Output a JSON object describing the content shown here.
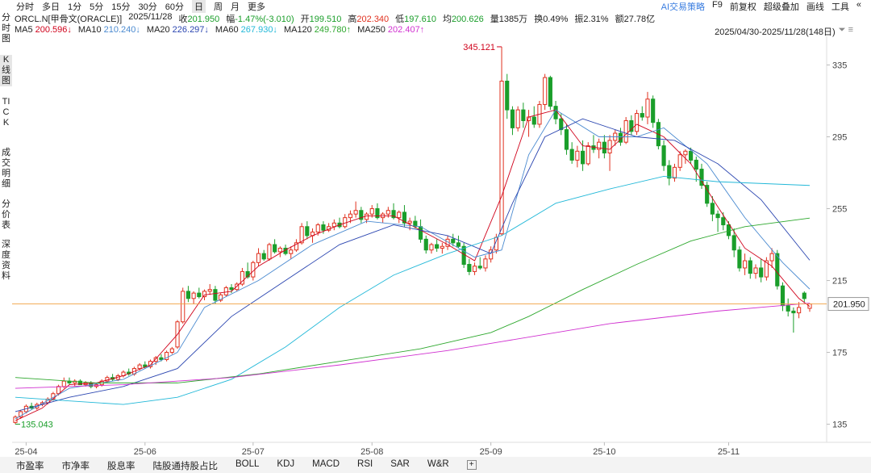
{
  "toolbar": {
    "periods": [
      "分时",
      "多日",
      "1分",
      "5分",
      "15分",
      "30分",
      "60分",
      "日",
      "周",
      "月",
      "更多"
    ],
    "selected": "日",
    "tools": [
      "AI交易策略",
      "F9",
      "前复权",
      "超级叠加",
      "画线",
      "工具"
    ]
  },
  "quote": [
    {
      "label": "ORCL.N[甲骨文(ORACLE)]",
      "color": "#222"
    },
    {
      "label": "2025/11/28",
      "color": "#222"
    },
    {
      "label": "收",
      "value": "201.950",
      "color": "#1a9e2a"
    },
    {
      "label": "幅",
      "value": "-1.47%(-3.010)",
      "color": "#1a9e2a"
    },
    {
      "label": "开",
      "value": "199.510",
      "color": "#1a9e2a"
    },
    {
      "label": "高",
      "value": "202.340",
      "color": "#e0301e"
    },
    {
      "label": "低",
      "value": "197.610",
      "color": "#1a9e2a"
    },
    {
      "label": "均",
      "value": "200.626",
      "color": "#1a9e2a"
    },
    {
      "label": "量",
      "value": "1385万",
      "color": "#222"
    },
    {
      "label": "换",
      "value": "0.49%",
      "color": "#222"
    },
    {
      "label": "振",
      "value": "2.31%",
      "color": "#222"
    },
    {
      "label": "额",
      "value": "27.78亿",
      "color": "#222"
    }
  ],
  "ma_legend": [
    {
      "name": "MA5",
      "value": "200.596↓",
      "color": "#d0021b"
    },
    {
      "name": "MA10",
      "value": "210.240↓",
      "color": "#4a8ad0"
    },
    {
      "name": "MA20",
      "value": "226.297↓",
      "color": "#2a45b0"
    },
    {
      "name": "MA60",
      "value": "267.930↓",
      "color": "#22b8d8"
    },
    {
      "name": "MA120",
      "value": "249.780↑",
      "color": "#2ea82e"
    },
    {
      "name": "MA250",
      "value": "202.407↑",
      "color": "#d030d0"
    }
  ],
  "range": "2025/04/30-2025/11/28(148日)",
  "side_tabs": [
    "分时图",
    "K线图",
    "TICK",
    "成交明细",
    "分价表",
    "深度资料"
  ],
  "side_selected": "K线图",
  "bottom_tabs": [
    "市盈率",
    "市净率",
    "股息率",
    "陆股通持股占比",
    "BOLL",
    "KDJ",
    "MACD",
    "RSI",
    "SAR",
    "W&R"
  ],
  "chart": {
    "type": "candlestick",
    "up_color": "#e0301e",
    "down_color": "#1a9e2a",
    "xlim": [
      0,
      147
    ],
    "ylim": [
      130,
      346
    ],
    "yticks": [
      335,
      295,
      255,
      215,
      175,
      135
    ],
    "xticks": [
      {
        "value": 2,
        "label": "25-04"
      },
      {
        "value": 24,
        "label": "25-06"
      },
      {
        "value": 44,
        "label": "25-07"
      },
      {
        "value": 66,
        "label": "25-08"
      },
      {
        "value": 88,
        "label": "25-09"
      },
      {
        "value": 109,
        "label": "25-10"
      },
      {
        "value": 132,
        "label": "25-11"
      }
    ],
    "candles": [
      [
        136,
        140,
        135.043,
        139
      ],
      [
        139,
        143,
        138,
        142
      ],
      [
        142,
        146,
        141,
        145
      ],
      [
        145,
        147,
        143,
        144
      ],
      [
        144,
        147,
        143,
        146
      ],
      [
        146,
        148,
        145,
        147
      ],
      [
        147,
        150,
        146,
        149
      ],
      [
        149,
        153,
        148,
        152
      ],
      [
        152,
        157,
        151,
        156
      ],
      [
        156,
        161,
        155,
        159
      ],
      [
        159,
        161,
        157,
        158
      ],
      [
        158,
        160,
        156,
        159
      ],
      [
        159,
        160,
        157,
        157
      ],
      [
        157,
        159,
        156,
        158
      ],
      [
        158,
        159,
        155,
        156
      ],
      [
        156,
        158,
        155,
        157
      ],
      [
        157,
        160,
        156,
        159
      ],
      [
        159,
        162,
        158,
        161
      ],
      [
        161,
        163,
        159,
        160
      ],
      [
        160,
        163,
        159,
        162
      ],
      [
        162,
        165,
        161,
        164
      ],
      [
        164,
        166,
        162,
        163
      ],
      [
        163,
        167,
        162,
        166
      ],
      [
        166,
        169,
        165,
        168
      ],
      [
        168,
        170,
        166,
        167
      ],
      [
        167,
        171,
        166,
        170
      ],
      [
        170,
        173,
        168,
        172
      ],
      [
        172,
        174,
        170,
        171
      ],
      [
        171,
        176,
        170,
        175
      ],
      [
        175,
        178,
        174,
        177
      ],
      [
        178,
        193,
        177,
        192
      ],
      [
        192,
        211,
        191,
        209
      ],
      [
        209,
        212,
        203,
        205
      ],
      [
        205,
        209,
        202,
        208
      ],
      [
        208,
        211,
        205,
        206
      ],
      [
        206,
        210,
        204,
        209
      ],
      [
        209,
        213,
        207,
        210
      ],
      [
        210,
        212,
        202,
        204
      ],
      [
        204,
        208,
        203,
        207
      ],
      [
        207,
        212,
        206,
        211
      ],
      [
        211,
        213,
        208,
        210
      ],
      [
        210,
        214,
        209,
        213
      ],
      [
        213,
        222,
        212,
        220
      ],
      [
        220,
        225,
        216,
        217
      ],
      [
        217,
        226,
        215,
        225
      ],
      [
        225,
        233,
        223,
        230
      ],
      [
        230,
        232,
        226,
        227
      ],
      [
        227,
        236,
        226,
        235
      ],
      [
        235,
        238,
        230,
        231
      ],
      [
        231,
        234,
        228,
        233
      ],
      [
        233,
        235,
        229,
        230
      ],
      [
        230,
        234,
        227,
        232
      ],
      [
        232,
        238,
        231,
        236
      ],
      [
        236,
        247,
        235,
        245
      ],
      [
        245,
        248,
        238,
        240
      ],
      [
        240,
        244,
        236,
        242
      ],
      [
        242,
        247,
        240,
        246
      ],
      [
        246,
        248,
        241,
        243
      ],
      [
        243,
        247,
        242,
        245
      ],
      [
        245,
        249,
        243,
        247
      ],
      [
        247,
        250,
        244,
        245
      ],
      [
        245,
        252,
        244,
        250
      ],
      [
        250,
        254,
        247,
        252
      ],
      [
        252,
        259,
        250,
        254
      ],
      [
        254,
        256,
        247,
        249
      ],
      [
        249,
        253,
        247,
        252
      ],
      [
        252,
        257,
        250,
        255
      ],
      [
        255,
        258,
        249,
        250
      ],
      [
        250,
        253,
        247,
        252
      ],
      [
        252,
        256,
        250,
        254
      ],
      [
        254,
        258,
        249,
        250
      ],
      [
        250,
        254,
        247,
        253
      ],
      [
        253,
        257,
        245,
        247
      ],
      [
        247,
        250,
        243,
        248
      ],
      [
        248,
        251,
        244,
        245
      ],
      [
        245,
        249,
        236,
        238
      ],
      [
        238,
        240,
        230,
        232
      ],
      [
        232,
        236,
        230,
        235
      ],
      [
        235,
        238,
        231,
        233
      ],
      [
        233,
        236,
        230,
        234
      ],
      [
        234,
        240,
        232,
        238
      ],
      [
        238,
        241,
        234,
        236
      ],
      [
        236,
        240,
        233,
        234
      ],
      [
        234,
        236,
        222,
        224
      ],
      [
        224,
        227,
        218,
        220
      ],
      [
        220,
        225,
        218,
        223
      ],
      [
        223,
        228,
        221,
        222
      ],
      [
        222,
        229,
        220,
        227
      ],
      [
        227,
        234,
        225,
        232
      ],
      [
        232,
        241,
        230,
        239
      ],
      [
        241,
        345.121,
        240,
        326
      ],
      [
        326,
        330,
        305,
        310
      ],
      [
        310,
        312,
        296,
        300
      ],
      [
        300,
        312,
        298,
        310
      ],
      [
        310,
        314,
        300,
        304
      ],
      [
        304,
        310,
        295,
        306
      ],
      [
        306,
        312,
        300,
        302
      ],
      [
        302,
        315,
        300,
        313
      ],
      [
        313,
        330,
        310,
        328
      ],
      [
        328,
        329,
        310,
        312
      ],
      [
        312,
        315,
        302,
        305
      ],
      [
        305,
        308,
        296,
        299
      ],
      [
        299,
        302,
        285,
        288
      ],
      [
        288,
        292,
        280,
        282
      ],
      [
        282,
        290,
        278,
        287
      ],
      [
        287,
        293,
        276,
        280
      ],
      [
        280,
        292,
        279,
        290
      ],
      [
        290,
        296,
        286,
        288
      ],
      [
        288,
        294,
        283,
        292
      ],
      [
        292,
        296,
        283,
        286
      ],
      [
        286,
        296,
        276,
        293
      ],
      [
        293,
        299,
        290,
        297
      ],
      [
        297,
        300,
        290,
        292
      ],
      [
        292,
        306,
        291,
        304
      ],
      [
        304,
        307,
        296,
        298
      ],
      [
        298,
        310,
        296,
        308
      ],
      [
        308,
        312,
        304,
        306
      ],
      [
        306,
        320,
        302,
        316
      ],
      [
        316,
        318,
        300,
        303
      ],
      [
        303,
        305,
        288,
        290
      ],
      [
        290,
        293,
        276,
        279
      ],
      [
        279,
        282,
        268,
        272
      ],
      [
        272,
        280,
        270,
        278
      ],
      [
        278,
        287,
        276,
        285
      ],
      [
        285,
        288,
        280,
        287
      ],
      [
        287,
        289,
        280,
        282
      ],
      [
        282,
        284,
        270,
        277
      ],
      [
        277,
        280,
        266,
        268
      ],
      [
        268,
        270,
        256,
        258
      ],
      [
        258,
        262,
        248,
        252
      ],
      [
        252,
        254,
        242,
        250
      ],
      [
        250,
        253,
        243,
        246
      ],
      [
        246,
        248,
        238,
        240
      ],
      [
        240,
        244,
        228,
        232
      ],
      [
        232,
        234,
        220,
        222
      ],
      [
        222,
        230,
        218,
        226
      ],
      [
        226,
        228,
        216,
        219
      ],
      [
        219,
        224,
        216,
        222
      ],
      [
        222,
        227,
        214,
        217
      ],
      [
        217,
        228,
        215,
        226
      ],
      [
        226,
        233,
        222,
        230
      ],
      [
        230,
        232,
        210,
        212
      ],
      [
        212,
        214,
        198,
        201
      ],
      [
        201,
        205,
        195,
        198
      ],
      [
        198,
        200,
        186,
        197
      ],
      [
        197,
        203,
        194,
        200
      ],
      [
        208,
        209,
        203,
        204.96
      ],
      [
        199.51,
        202.34,
        197.61,
        201.95
      ]
    ],
    "series": [
      {
        "name": "MA5",
        "color": "#d0021b",
        "x": [
          0,
          5,
          10,
          15,
          20,
          25,
          30,
          35,
          40,
          45,
          50,
          55,
          60,
          65,
          70,
          75,
          80,
          85,
          90,
          95,
          100,
          105,
          110,
          115,
          120,
          125,
          130,
          135,
          140,
          145,
          147
        ],
        "values": [
          137,
          144,
          157,
          158,
          162,
          168,
          185,
          207,
          209,
          223,
          232,
          240,
          246,
          251,
          251,
          243,
          235,
          226,
          262,
          306,
          310,
          290,
          288,
          302,
          295,
          280,
          256,
          233,
          223,
          205,
          200.596
        ]
      },
      {
        "name": "MA10",
        "color": "#4a8ad0",
        "x": [
          0,
          10,
          20,
          30,
          35,
          45,
          55,
          65,
          75,
          85,
          90,
          95,
          100,
          108,
          115,
          120,
          128,
          135,
          142,
          147
        ],
        "values": [
          138,
          155,
          160,
          175,
          200,
          215,
          235,
          248,
          245,
          228,
          232,
          285,
          310,
          295,
          295,
          300,
          280,
          250,
          225,
          210.24
        ]
      },
      {
        "name": "MA20",
        "color": "#2a45b0",
        "x": [
          0,
          10,
          20,
          30,
          40,
          50,
          60,
          70,
          80,
          88,
          92,
          98,
          105,
          115,
          122,
          130,
          138,
          147
        ],
        "values": [
          142,
          150,
          156,
          166,
          195,
          215,
          235,
          246,
          240,
          230,
          258,
          295,
          305,
          295,
          293,
          280,
          260,
          226.297
        ]
      },
      {
        "name": "MA60",
        "color": "#22b8d8",
        "x": [
          0,
          10,
          20,
          30,
          40,
          50,
          60,
          70,
          80,
          90,
          100,
          110,
          120,
          130,
          147
        ],
        "values": [
          150,
          148,
          146,
          150,
          160,
          178,
          200,
          218,
          230,
          240,
          258,
          266,
          273,
          270,
          267.93
        ]
      },
      {
        "name": "MA120",
        "color": "#2ea82e",
        "x": [
          0,
          15,
          30,
          45,
          60,
          75,
          88,
          95,
          105,
          115,
          125,
          135,
          147
        ],
        "values": [
          161,
          158,
          158,
          163,
          170,
          177,
          186,
          195,
          210,
          224,
          237,
          245,
          249.78
        ]
      },
      {
        "name": "MA250",
        "color": "#d030d0",
        "x": [
          0,
          20,
          40,
          60,
          80,
          90,
          110,
          130,
          147
        ],
        "values": [
          155,
          157,
          161,
          168,
          176,
          181,
          191,
          198,
          202.407
        ]
      }
    ],
    "high_label": {
      "index": 90,
      "value": 345.121
    },
    "low_label": {
      "index": 0,
      "value": 135.043
    },
    "last_price": {
      "value": 201.95,
      "label": "201.950",
      "color": "#f0a040"
    }
  }
}
